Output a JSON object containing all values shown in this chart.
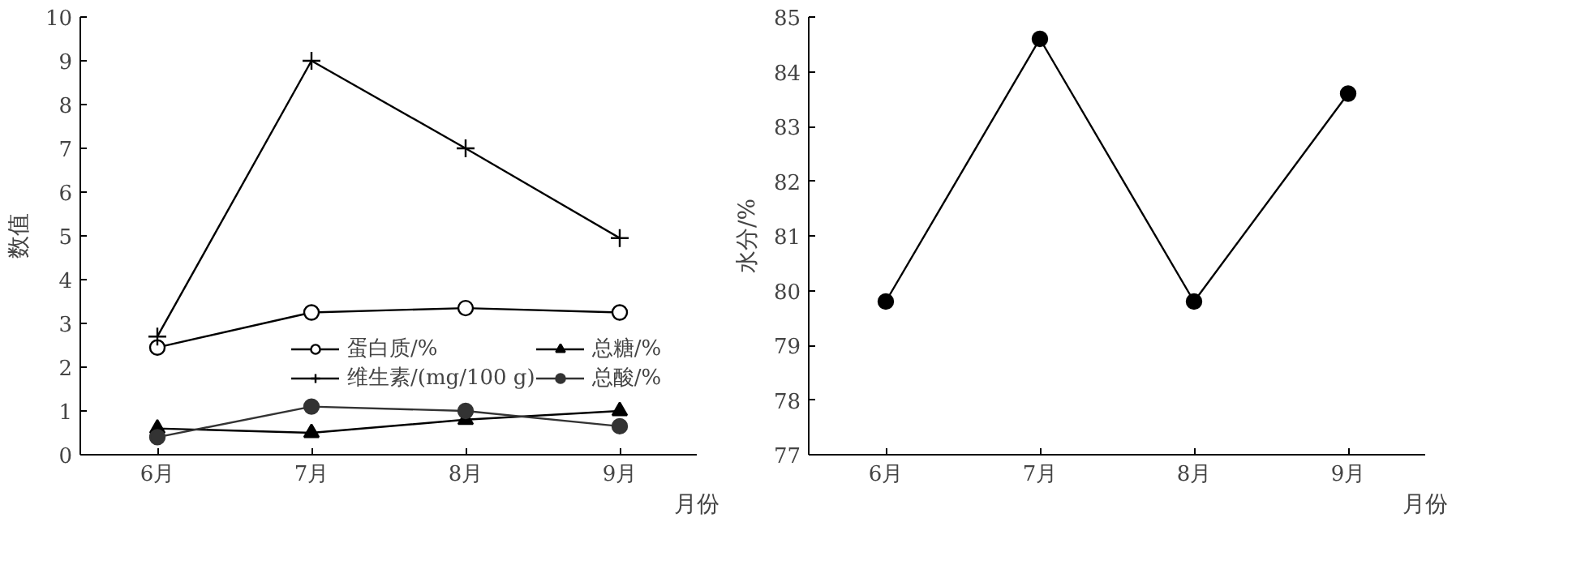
{
  "chart_data": [
    {
      "type": "line",
      "xlabel": "月份",
      "ylabel": "数值",
      "categories": [
        "6月",
        "7月",
        "8月",
        "9月"
      ],
      "ylim": [
        0,
        10
      ],
      "yticks": [
        0,
        1,
        2,
        3,
        4,
        5,
        6,
        7,
        8,
        9,
        10
      ],
      "grid": false,
      "legend": "bottom right",
      "series": [
        {
          "name": "蛋白质/%",
          "color": "#000000",
          "marker": "circle",
          "values": [
            2.45,
            3.25,
            3.35,
            3.25
          ]
        },
        {
          "name": "总糖/%",
          "color": "#000000",
          "marker": "triangle",
          "values": [
            0.6,
            0.5,
            0.8,
            1.0
          ]
        },
        {
          "name": "维生素/(mg/100 g)",
          "color": "#000000",
          "marker": "cross",
          "values": [
            2.7,
            9.0,
            7.0,
            4.95
          ]
        },
        {
          "name": "总酸/%",
          "color": "#333333",
          "marker": "circle",
          "values": [
            0.4,
            1.1,
            1.0,
            0.65
          ]
        }
      ]
    },
    {
      "type": "line",
      "xlabel": "月份",
      "ylabel": "水分/%",
      "categories": [
        "6月",
        "7月",
        "8月",
        "9月"
      ],
      "ylim": [
        77,
        85
      ],
      "yticks": [
        77,
        78,
        79,
        80,
        81,
        82,
        83,
        84,
        85
      ],
      "grid": false,
      "legend": false,
      "marker": "circle",
      "series": [
        {
          "color": "#000000",
          "values": [
            79.8,
            84.6,
            79.8,
            83.6
          ]
        }
      ]
    }
  ]
}
